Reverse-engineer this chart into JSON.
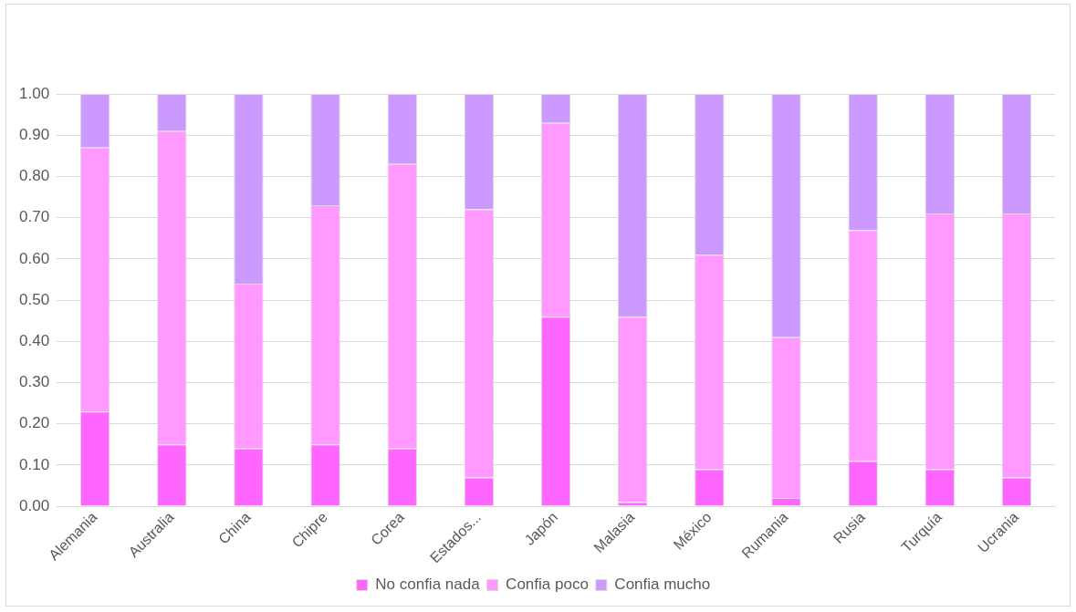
{
  "chart_data": {
    "type": "bar",
    "stacked": true,
    "categories": [
      "Alemania",
      "Australia",
      "China",
      "Chipre",
      "Corea",
      "Estados...",
      "Japón",
      "Malasia",
      "México",
      "Rumania",
      "Rusia",
      "Turquía",
      "Ucrania"
    ],
    "series": [
      {
        "name": "No confia nada",
        "color": "#ff66ff",
        "values": [
          0.23,
          0.15,
          0.14,
          0.15,
          0.14,
          0.07,
          0.46,
          0.01,
          0.09,
          0.02,
          0.11,
          0.09,
          0.07
        ]
      },
      {
        "name": "Confia poco",
        "color": "#ff99ff",
        "values": [
          0.64,
          0.76,
          0.4,
          0.58,
          0.69,
          0.65,
          0.47,
          0.45,
          0.52,
          0.39,
          0.56,
          0.62,
          0.64
        ]
      },
      {
        "name": "Confia mucho",
        "color": "#cc99ff",
        "values": [
          0.13,
          0.09,
          0.46,
          0.27,
          0.17,
          0.28,
          0.07,
          0.54,
          0.39,
          0.59,
          0.33,
          0.29,
          0.29
        ]
      }
    ],
    "ylim": [
      0,
      1
    ],
    "yticks": [
      {
        "value": 0,
        "label": "0.00"
      },
      {
        "value": 0.1,
        "label": "0.10"
      },
      {
        "value": 0.2,
        "label": "0.20"
      },
      {
        "value": 0.3,
        "label": "0.30"
      },
      {
        "value": 0.4,
        "label": "0.40"
      },
      {
        "value": 0.5,
        "label": "0.50"
      },
      {
        "value": 0.6,
        "label": "0.60"
      },
      {
        "value": 0.7,
        "label": "0.70"
      },
      {
        "value": 0.8,
        "label": "0.80"
      },
      {
        "value": 0.9,
        "label": "0.90"
      },
      {
        "value": 1,
        "label": "1.00"
      }
    ],
    "grid": "y",
    "legend": "bottom"
  }
}
